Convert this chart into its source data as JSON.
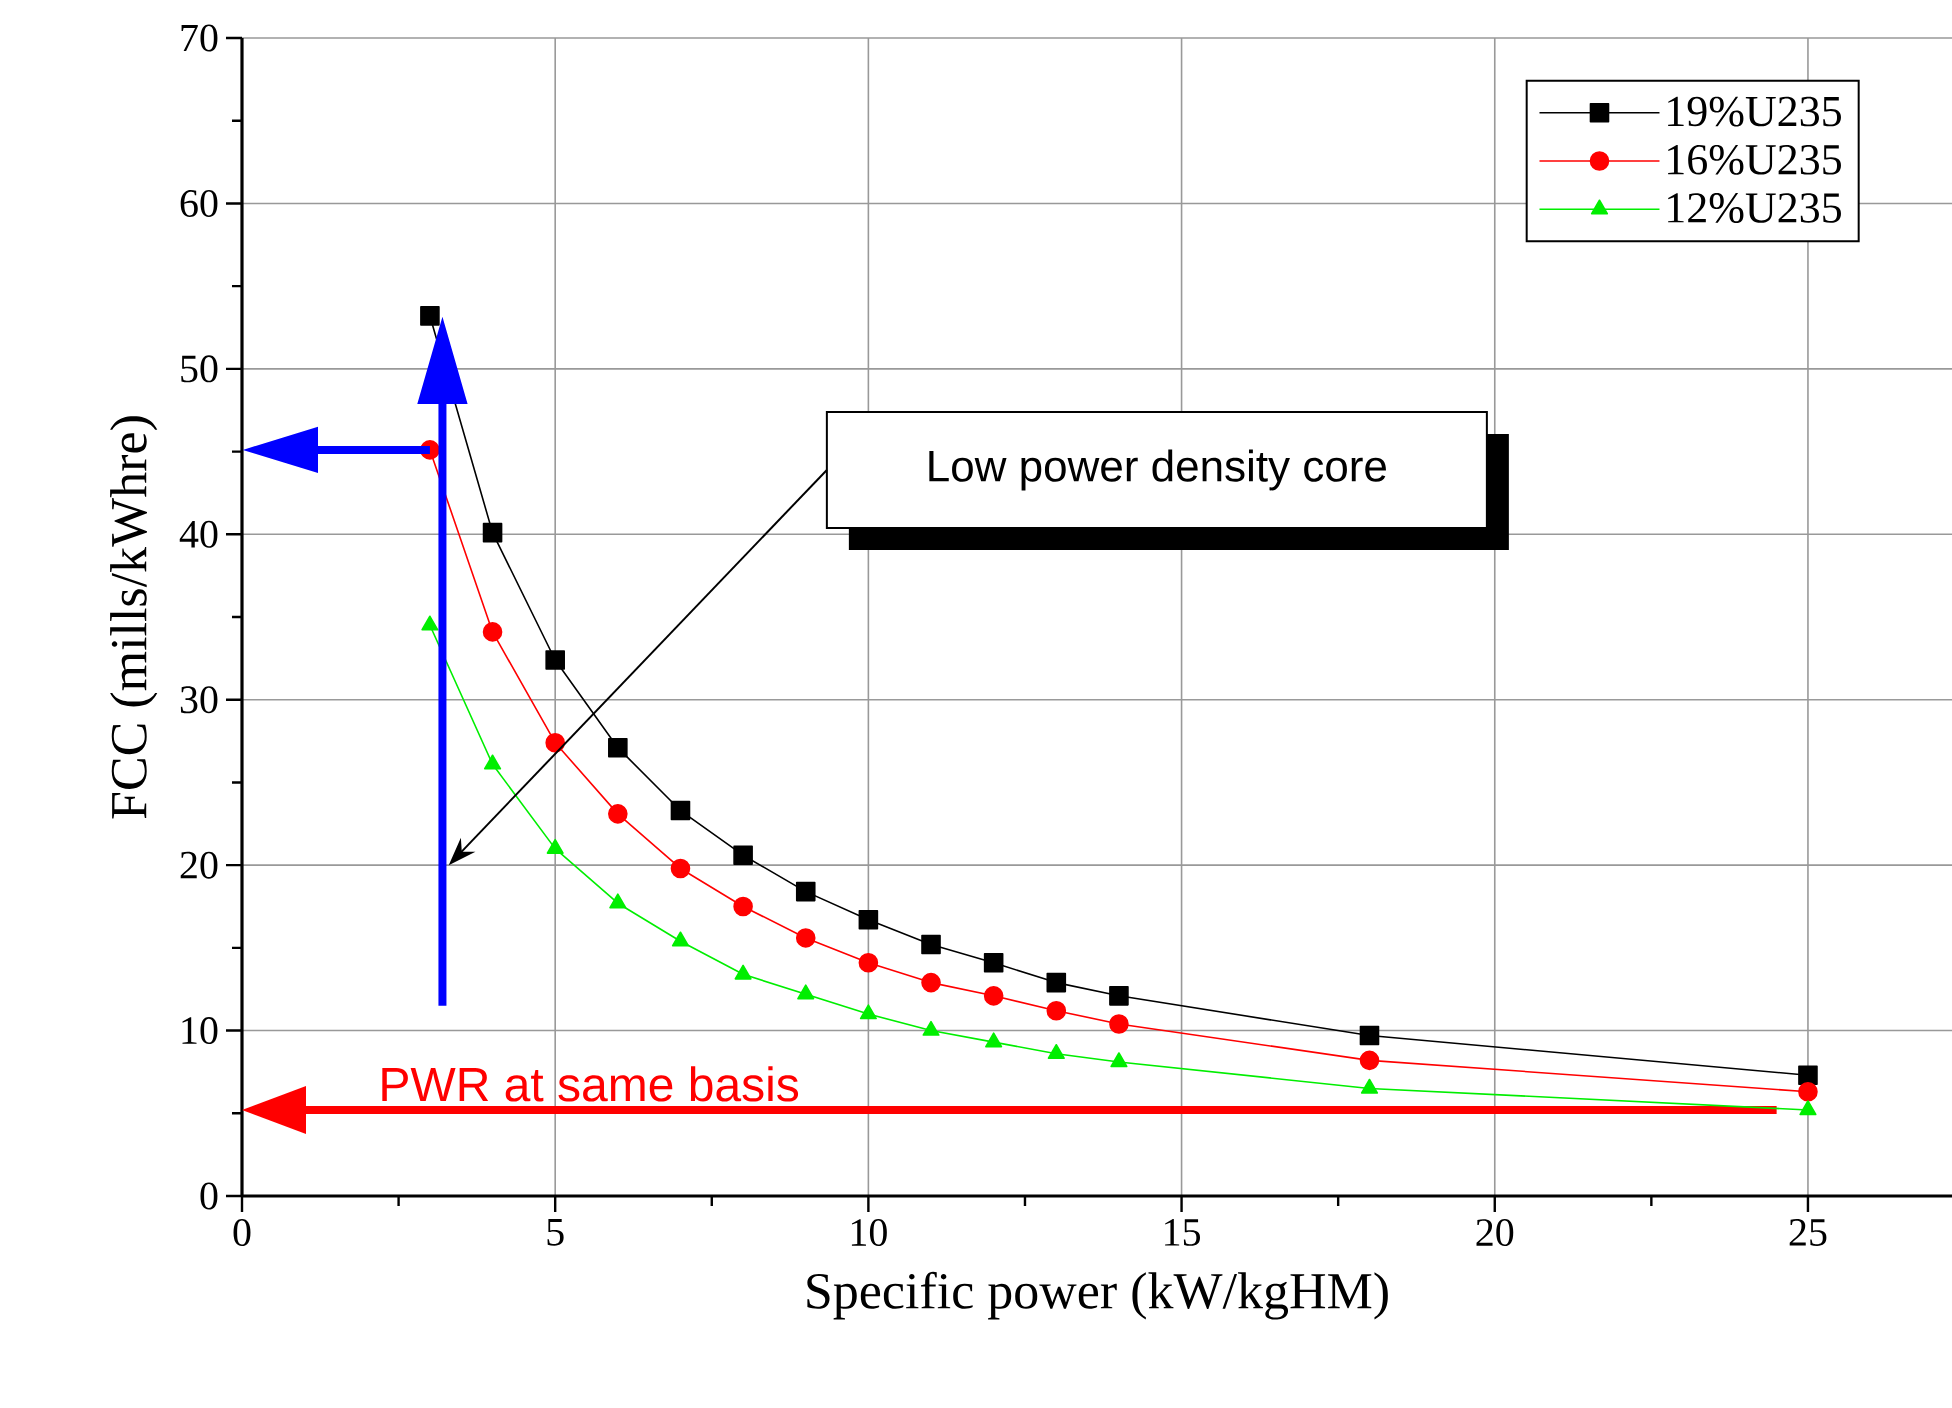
{
  "chart_data": {
    "type": "line",
    "xlabel": "Specific power (kW/kgHM)",
    "ylabel": "FCC (mills/kWhre)",
    "x": [
      3,
      4,
      5,
      6,
      7,
      8,
      9,
      10,
      11,
      12,
      13,
      14,
      18,
      25
    ],
    "series": [
      {
        "name": "19%U235",
        "color": "#000000",
        "marker": "square",
        "values": [
          53.2,
          40.1,
          32.4,
          27.1,
          23.3,
          20.6,
          18.4,
          16.7,
          15.2,
          14.1,
          12.9,
          12.1,
          9.7,
          7.3
        ]
      },
      {
        "name": "16%U235",
        "color": "#ff0000",
        "marker": "circle",
        "values": [
          45.1,
          34.1,
          27.4,
          23.1,
          19.8,
          17.5,
          15.6,
          14.1,
          12.9,
          12.1,
          11.2,
          10.4,
          8.2,
          6.3
        ]
      },
      {
        "name": "12%U235",
        "color": "#00ee00",
        "marker": "triangle",
        "values": [
          34.5,
          26.1,
          21.0,
          17.7,
          15.4,
          13.4,
          12.2,
          11.0,
          10.0,
          9.3,
          8.6,
          8.1,
          6.5,
          5.2
        ]
      }
    ],
    "xlim": [
      0,
      27.3
    ],
    "ylim": [
      0,
      70
    ],
    "xticks": [
      0,
      5,
      10,
      15,
      20,
      25
    ],
    "yticks": [
      0,
      10,
      20,
      30,
      40,
      50,
      60,
      70
    ],
    "grid": true,
    "legend": "top right",
    "ref_lines": [
      {
        "axis": "y",
        "value": 5.2,
        "label": "PWR at same basis",
        "color": "#ff0000"
      }
    ],
    "annotations": [
      "Low power density core"
    ]
  }
}
